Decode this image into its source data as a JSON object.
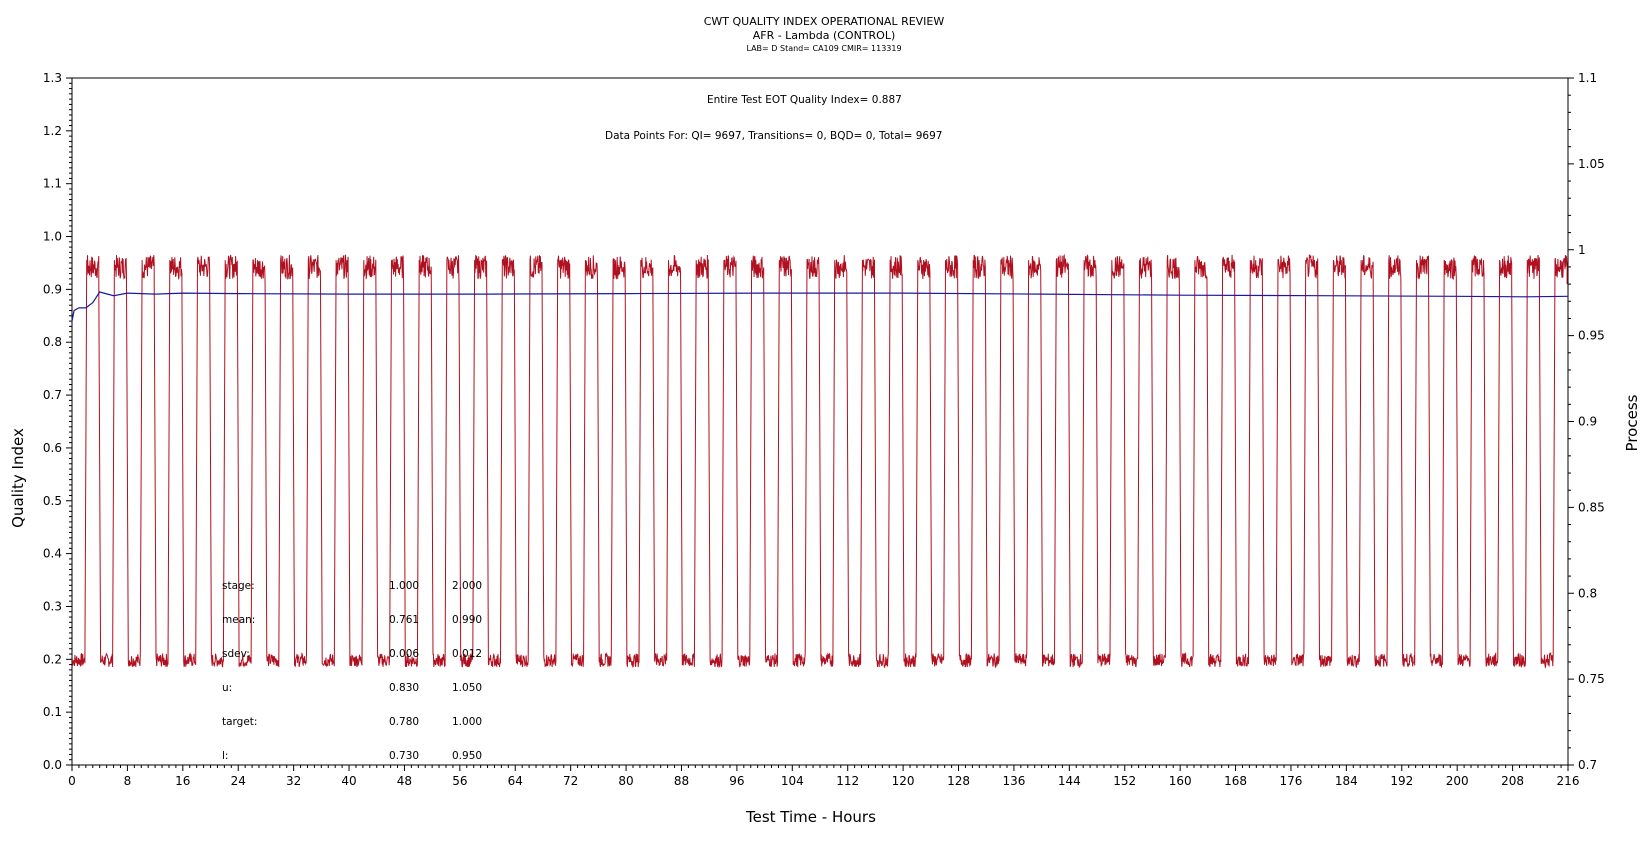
{
  "header": {
    "title": "CWT QUALITY INDEX OPERATIONAL REVIEW",
    "subtitle": "AFR - Lambda (CONTROL)",
    "info": "LAB= D Stand= CA109 CMIR= 113319"
  },
  "annotations": {
    "quality_index": "Entire Test EOT Quality Index=   0.887",
    "data_points": "Data Points For: QI=  9697, Transitions=     0, BQD=     0, Total=  9697"
  },
  "stats": {
    "columns": [
      "",
      "1.000",
      "2.000"
    ],
    "rows": [
      {
        "label": "stage:",
        "v1": "1.000",
        "v2": "2.000"
      },
      {
        "label": "mean:",
        "v1": "0.761",
        "v2": "0.990"
      },
      {
        "label": "sdev:",
        "v1": "0.006",
        "v2": "0.012"
      },
      {
        "label": "u:",
        "v1": "0.830",
        "v2": "1.050"
      },
      {
        "label": "target:",
        "v1": "0.780",
        "v2": "1.000"
      },
      {
        "label": "l:",
        "v1": "0.730",
        "v2": "0.950"
      }
    ]
  },
  "chart_data": {
    "type": "line",
    "title": "CWT QUALITY INDEX OPERATIONAL REVIEW",
    "xlabel": "Test Time - Hours",
    "ylabel": "Quality Index",
    "y2label": "Process",
    "xlim": [
      0,
      216
    ],
    "ylim": [
      0,
      1.3
    ],
    "y2lim": [
      0.7,
      1.1
    ],
    "x_ticks": [
      0,
      8,
      16,
      24,
      32,
      40,
      48,
      56,
      64,
      72,
      80,
      88,
      96,
      104,
      112,
      120,
      128,
      136,
      144,
      152,
      160,
      168,
      176,
      184,
      192,
      200,
      208,
      216
    ],
    "y_ticks": [
      "0.0",
      "0.1",
      "0.2",
      "0.3",
      "0.4",
      "0.5",
      "0.6",
      "0.7",
      "0.8",
      "0.9",
      "1.0",
      "1.1",
      "1.2",
      "1.3"
    ],
    "y2_ticks": [
      "0.7",
      "0.75",
      "0.8",
      "0.85",
      "0.9",
      "0.95",
      "1",
      "1.05",
      "1.1"
    ],
    "grid": false,
    "legend": "none",
    "series": [
      {
        "axis": "right",
        "color": "#b01020",
        "pattern": "square-wave",
        "cycle_hours": 4,
        "low_level": 0.761,
        "high_level": 0.99,
        "x_start": 0,
        "x_end": 216
      },
      {
        "axis": "left",
        "color": "#1a1aa0",
        "x": [
          0,
          0.3,
          1,
          2,
          3,
          4,
          6,
          8,
          12,
          16,
          24,
          40,
          60,
          80,
          100,
          120,
          140,
          160,
          180,
          200,
          210,
          216
        ],
        "y": [
          0.84,
          0.86,
          0.865,
          0.865,
          0.875,
          0.895,
          0.888,
          0.893,
          0.891,
          0.893,
          0.892,
          0.891,
          0.891,
          0.892,
          0.893,
          0.893,
          0.891,
          0.889,
          0.888,
          0.887,
          0.886,
          0.887
        ]
      }
    ]
  }
}
